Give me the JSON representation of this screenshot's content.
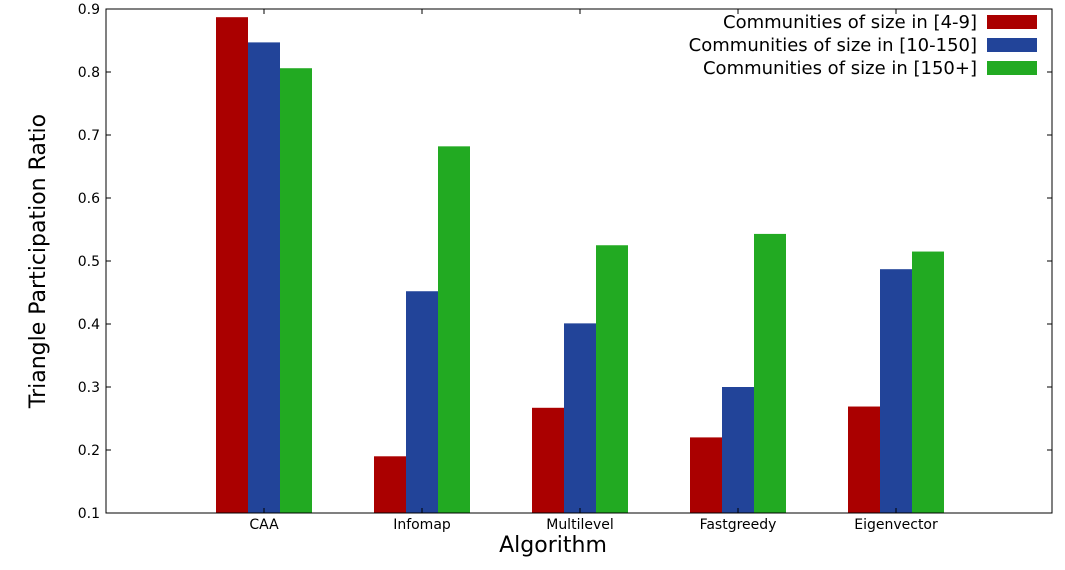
{
  "chart_data": {
    "type": "bar",
    "title": "",
    "xlabel": "Algorithm",
    "ylabel": "Triangle Participation Ratio",
    "ylim": [
      0.1,
      0.9
    ],
    "yticks": [
      "0.1",
      "0.2",
      "0.3",
      "0.4",
      "0.5",
      "0.6",
      "0.7",
      "0.8",
      "0.9"
    ],
    "categories": [
      "CAA",
      "Infomap",
      "Multilevel",
      "Fastgreedy",
      "Eigenvector"
    ],
    "series": [
      {
        "name": "Communities of size in [4-9]",
        "color": "#aa0000",
        "values": [
          0.887,
          0.19,
          0.267,
          0.22,
          0.269
        ]
      },
      {
        "name": "Communities of size in [10-150]",
        "color": "#224499",
        "values": [
          0.847,
          0.452,
          0.401,
          0.3,
          0.487
        ]
      },
      {
        "name": "Communities of size in [150+]",
        "color": "#22aa22",
        "values": [
          0.806,
          0.682,
          0.525,
          0.543,
          0.515
        ]
      }
    ],
    "legend_position": "top-right",
    "grid": false
  }
}
